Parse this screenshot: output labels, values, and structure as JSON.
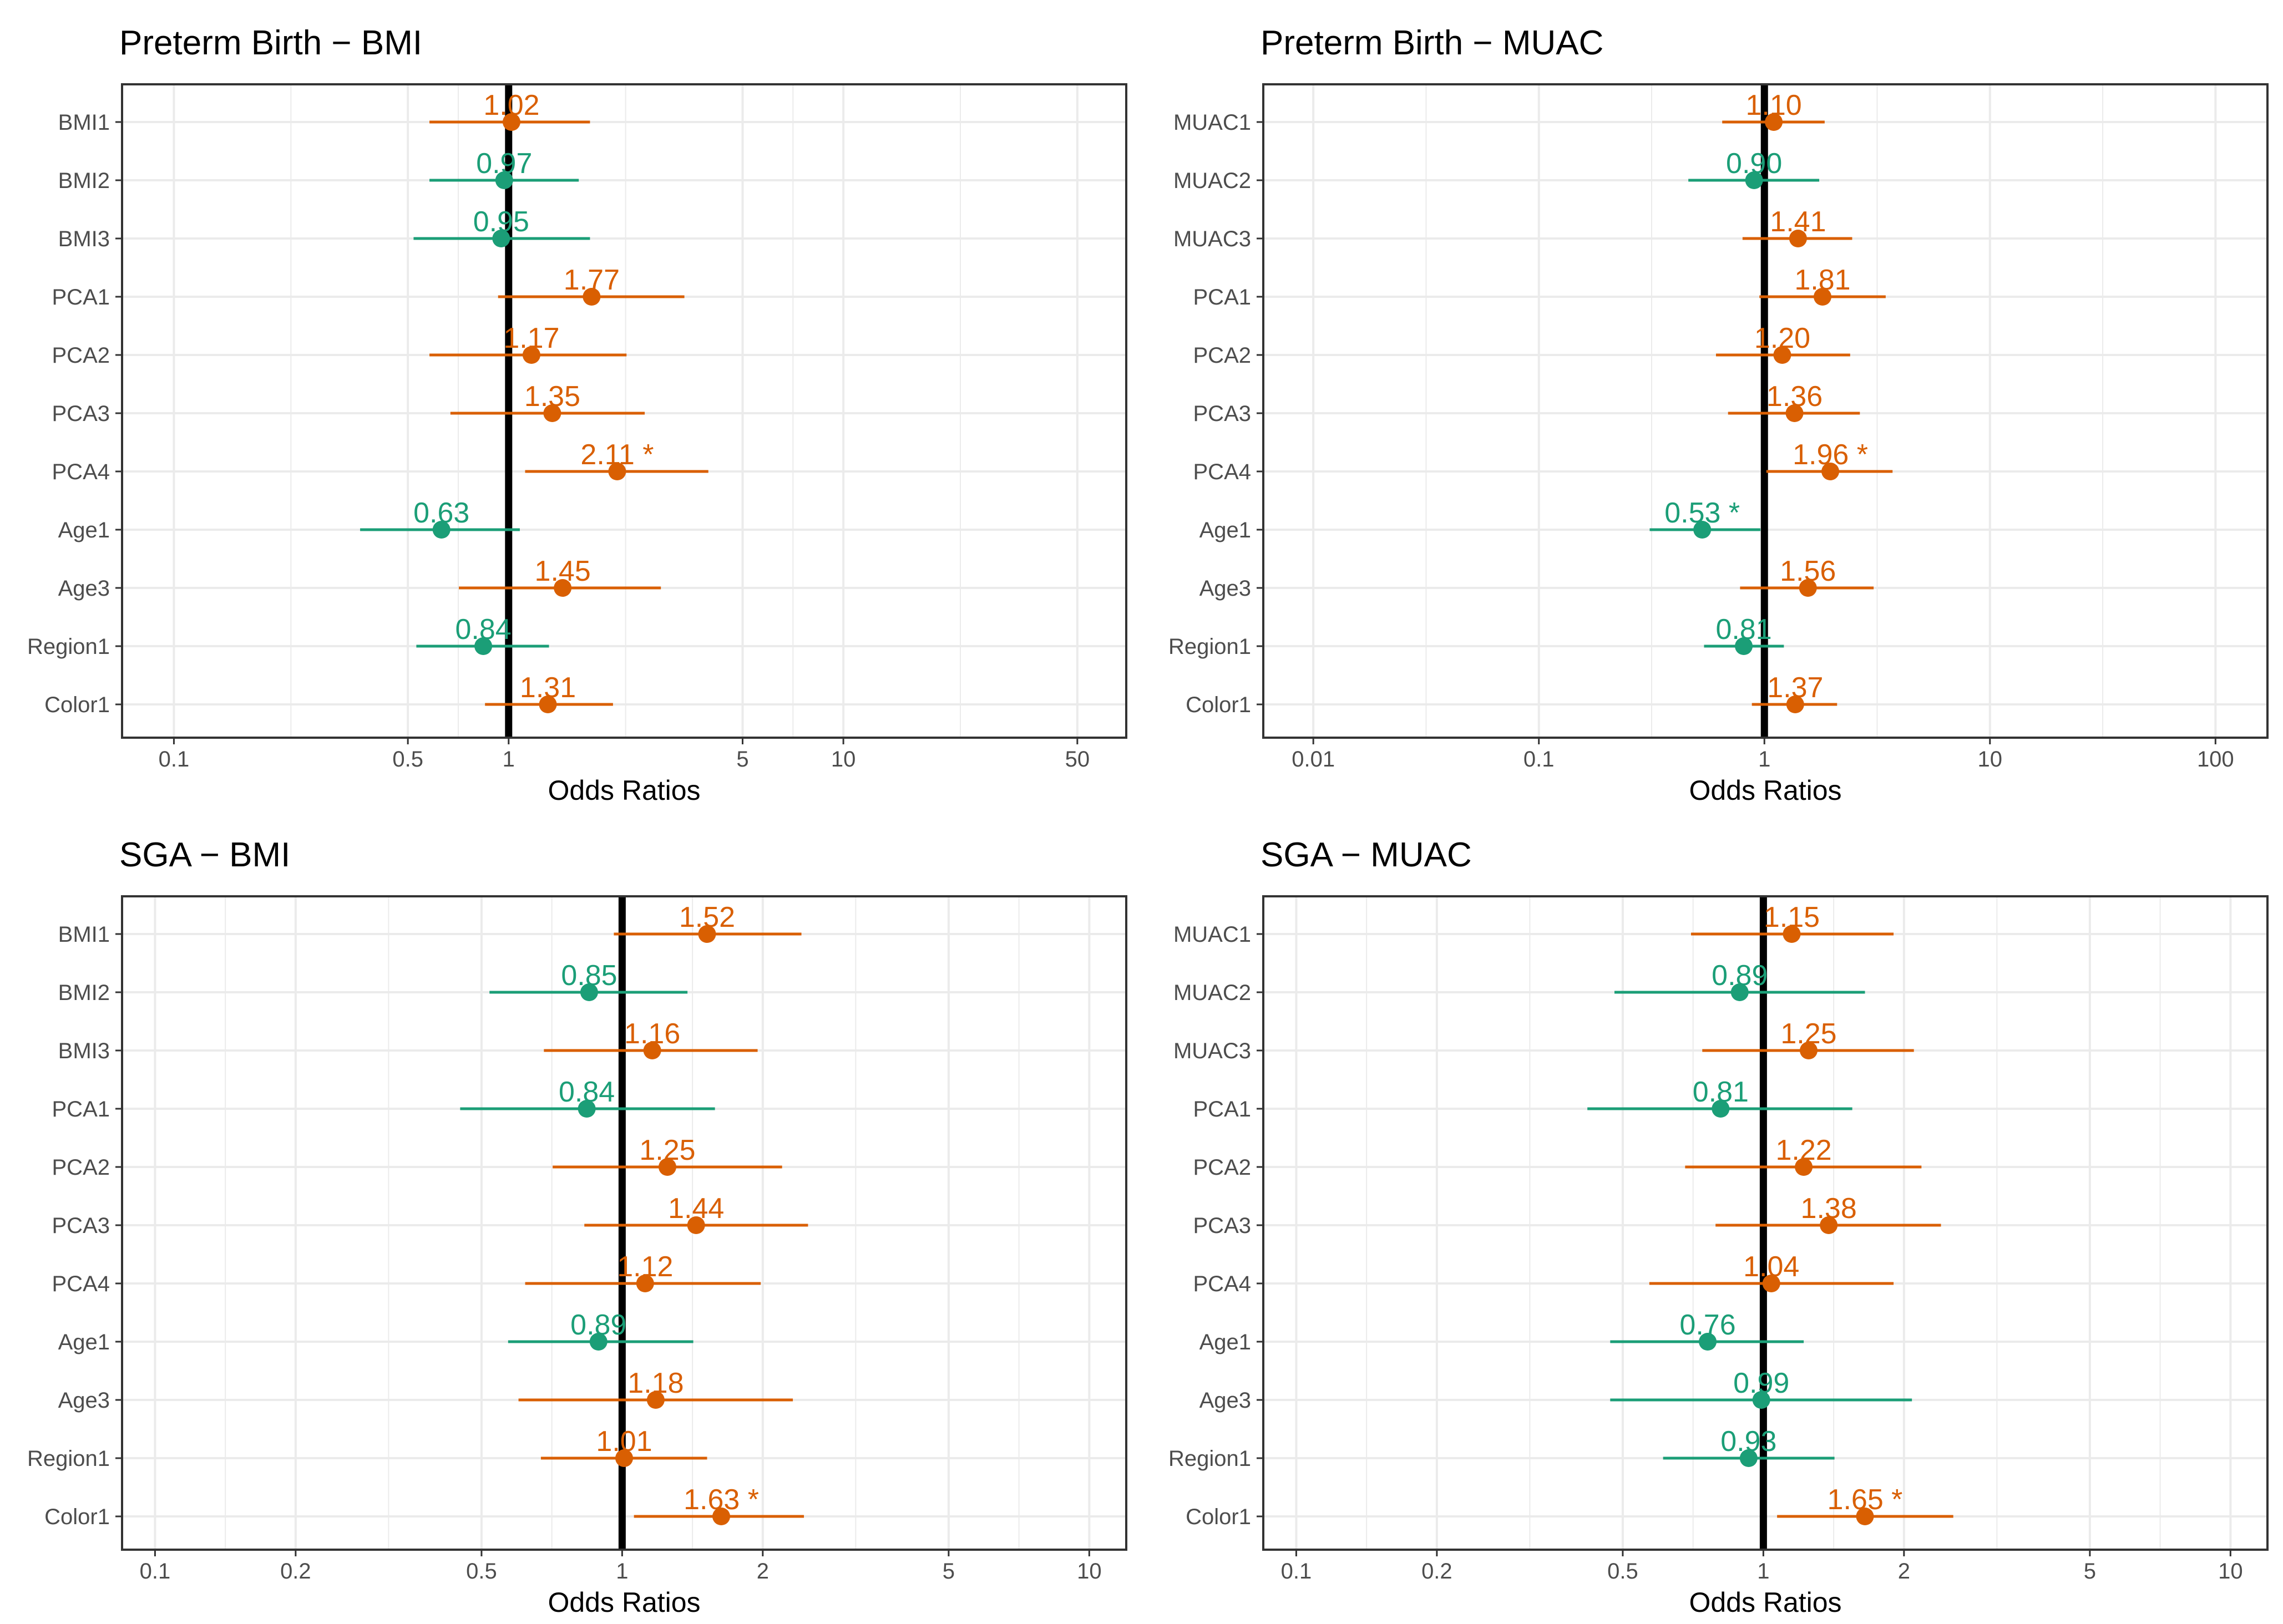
{
  "colors": {
    "above": "#D95F02",
    "below": "#1B9E77",
    "refline": "#000000",
    "grid": "#EBEBEB",
    "frame": "#333333"
  },
  "chart_data": [
    {
      "type": "forest",
      "title": "Preterm Birth − BMI",
      "xlabel": "Odds Ratios",
      "x_scale": "log",
      "xlim": [
        0.07,
        70
      ],
      "ref_line": 1,
      "ticks": [
        0.1,
        0.5,
        1,
        5,
        10,
        50
      ],
      "tick_labels": [
        "0.1",
        "0.5",
        "1",
        "5",
        "10",
        "50"
      ],
      "rows": [
        {
          "label": "BMI1",
          "or": 1.02,
          "lo": 0.58,
          "hi": 1.75,
          "text": "1.02"
        },
        {
          "label": "BMI2",
          "or": 0.97,
          "lo": 0.58,
          "hi": 1.62,
          "text": "0.97"
        },
        {
          "label": "BMI3",
          "or": 0.95,
          "lo": 0.52,
          "hi": 1.75,
          "text": "0.95"
        },
        {
          "label": "PCA1",
          "or": 1.77,
          "lo": 0.93,
          "hi": 3.35,
          "text": "1.77"
        },
        {
          "label": "PCA2",
          "or": 1.17,
          "lo": 0.58,
          "hi": 2.25,
          "text": "1.17"
        },
        {
          "label": "PCA3",
          "or": 1.35,
          "lo": 0.67,
          "hi": 2.55,
          "text": "1.35"
        },
        {
          "label": "PCA4",
          "or": 2.11,
          "lo": 1.12,
          "hi": 3.95,
          "text": "2.11 *"
        },
        {
          "label": "Age1",
          "or": 0.63,
          "lo": 0.36,
          "hi": 1.08,
          "text": "0.63"
        },
        {
          "label": "Age3",
          "or": 1.45,
          "lo": 0.71,
          "hi": 2.85,
          "text": "1.45"
        },
        {
          "label": "Region1",
          "or": 0.84,
          "lo": 0.53,
          "hi": 1.32,
          "text": "0.84"
        },
        {
          "label": "Color1",
          "or": 1.31,
          "lo": 0.85,
          "hi": 2.05,
          "text": "1.31"
        }
      ]
    },
    {
      "type": "forest",
      "title": "Preterm Birth − MUAC",
      "xlabel": "Odds Ratios",
      "x_scale": "log",
      "xlim": [
        0.006,
        170
      ],
      "ref_line": 1,
      "ticks": [
        0.01,
        0.1,
        1,
        10,
        100
      ],
      "tick_labels": [
        "0.01",
        "0.1",
        "1",
        "10",
        "100"
      ],
      "rows": [
        {
          "label": "MUAC1",
          "or": 1.1,
          "lo": 0.65,
          "hi": 1.85,
          "text": "1.10"
        },
        {
          "label": "MUAC2",
          "or": 0.9,
          "lo": 0.46,
          "hi": 1.75,
          "text": "0.90"
        },
        {
          "label": "MUAC3",
          "or": 1.41,
          "lo": 0.8,
          "hi": 2.45,
          "text": "1.41"
        },
        {
          "label": "PCA1",
          "or": 1.81,
          "lo": 0.95,
          "hi": 3.45,
          "text": "1.81"
        },
        {
          "label": "PCA2",
          "or": 1.2,
          "lo": 0.61,
          "hi": 2.4,
          "text": "1.20"
        },
        {
          "label": "PCA3",
          "or": 1.36,
          "lo": 0.69,
          "hi": 2.65,
          "text": "1.36"
        },
        {
          "label": "PCA4",
          "or": 1.96,
          "lo": 1.02,
          "hi": 3.7,
          "text": "1.96 *"
        },
        {
          "label": "Age1",
          "or": 0.53,
          "lo": 0.31,
          "hi": 0.96,
          "text": "0.53 *"
        },
        {
          "label": "Age3",
          "or": 1.56,
          "lo": 0.78,
          "hi": 3.05,
          "text": "1.56"
        },
        {
          "label": "Region1",
          "or": 0.81,
          "lo": 0.54,
          "hi": 1.22,
          "text": "0.81"
        },
        {
          "label": "Color1",
          "or": 1.37,
          "lo": 0.88,
          "hi": 2.1,
          "text": "1.37"
        }
      ]
    },
    {
      "type": "forest",
      "title": "SGA − BMI",
      "xlabel": "Odds Ratios",
      "x_scale": "log",
      "xlim": [
        0.085,
        12
      ],
      "ref_line": 1,
      "ticks": [
        0.1,
        0.2,
        0.5,
        1,
        2,
        5,
        10
      ],
      "tick_labels": [
        "0.1",
        "0.2",
        "0.5",
        "1",
        "2",
        "5",
        "10"
      ],
      "rows": [
        {
          "label": "BMI1",
          "or": 1.52,
          "lo": 0.96,
          "hi": 2.42,
          "text": "1.52"
        },
        {
          "label": "BMI2",
          "or": 0.85,
          "lo": 0.52,
          "hi": 1.38,
          "text": "0.85"
        },
        {
          "label": "BMI3",
          "or": 1.16,
          "lo": 0.68,
          "hi": 1.95,
          "text": "1.16"
        },
        {
          "label": "PCA1",
          "or": 0.84,
          "lo": 0.45,
          "hi": 1.58,
          "text": "0.84"
        },
        {
          "label": "PCA2",
          "or": 1.25,
          "lo": 0.71,
          "hi": 2.2,
          "text": "1.25"
        },
        {
          "label": "PCA3",
          "or": 1.44,
          "lo": 0.83,
          "hi": 2.5,
          "text": "1.44"
        },
        {
          "label": "PCA4",
          "or": 1.12,
          "lo": 0.62,
          "hi": 1.98,
          "text": "1.12"
        },
        {
          "label": "Age1",
          "or": 0.89,
          "lo": 0.57,
          "hi": 1.42,
          "text": "0.89"
        },
        {
          "label": "Age3",
          "or": 1.18,
          "lo": 0.6,
          "hi": 2.32,
          "text": "1.18"
        },
        {
          "label": "Region1",
          "or": 1.01,
          "lo": 0.67,
          "hi": 1.52,
          "text": "1.01"
        },
        {
          "label": "Color1",
          "or": 1.63,
          "lo": 1.06,
          "hi": 2.45,
          "text": "1.63 *"
        }
      ]
    },
    {
      "type": "forest",
      "title": "SGA − MUAC",
      "xlabel": "Odds Ratios",
      "x_scale": "log",
      "xlim": [
        0.085,
        12
      ],
      "ref_line": 1,
      "ticks": [
        0.1,
        0.2,
        0.5,
        1,
        2,
        5,
        10
      ],
      "tick_labels": [
        "0.1",
        "0.2",
        "0.5",
        "1",
        "2",
        "5",
        "10"
      ],
      "rows": [
        {
          "label": "MUAC1",
          "or": 1.15,
          "lo": 0.7,
          "hi": 1.9,
          "text": "1.15"
        },
        {
          "label": "MUAC2",
          "or": 0.89,
          "lo": 0.48,
          "hi": 1.65,
          "text": "0.89"
        },
        {
          "label": "MUAC3",
          "or": 1.25,
          "lo": 0.74,
          "hi": 2.1,
          "text": "1.25"
        },
        {
          "label": "PCA1",
          "or": 0.81,
          "lo": 0.42,
          "hi": 1.55,
          "text": "0.81"
        },
        {
          "label": "PCA2",
          "or": 1.22,
          "lo": 0.68,
          "hi": 2.18,
          "text": "1.22"
        },
        {
          "label": "PCA3",
          "or": 1.38,
          "lo": 0.79,
          "hi": 2.4,
          "text": "1.38"
        },
        {
          "label": "PCA4",
          "or": 1.04,
          "lo": 0.57,
          "hi": 1.9,
          "text": "1.04"
        },
        {
          "label": "Age1",
          "or": 0.76,
          "lo": 0.47,
          "hi": 1.22,
          "text": "0.76"
        },
        {
          "label": "Age3",
          "or": 0.99,
          "lo": 0.47,
          "hi": 2.08,
          "text": "0.99"
        },
        {
          "label": "Region1",
          "or": 0.93,
          "lo": 0.61,
          "hi": 1.42,
          "text": "0.93"
        },
        {
          "label": "Color1",
          "or": 1.65,
          "lo": 1.07,
          "hi": 2.55,
          "text": "1.65 *"
        }
      ]
    }
  ]
}
